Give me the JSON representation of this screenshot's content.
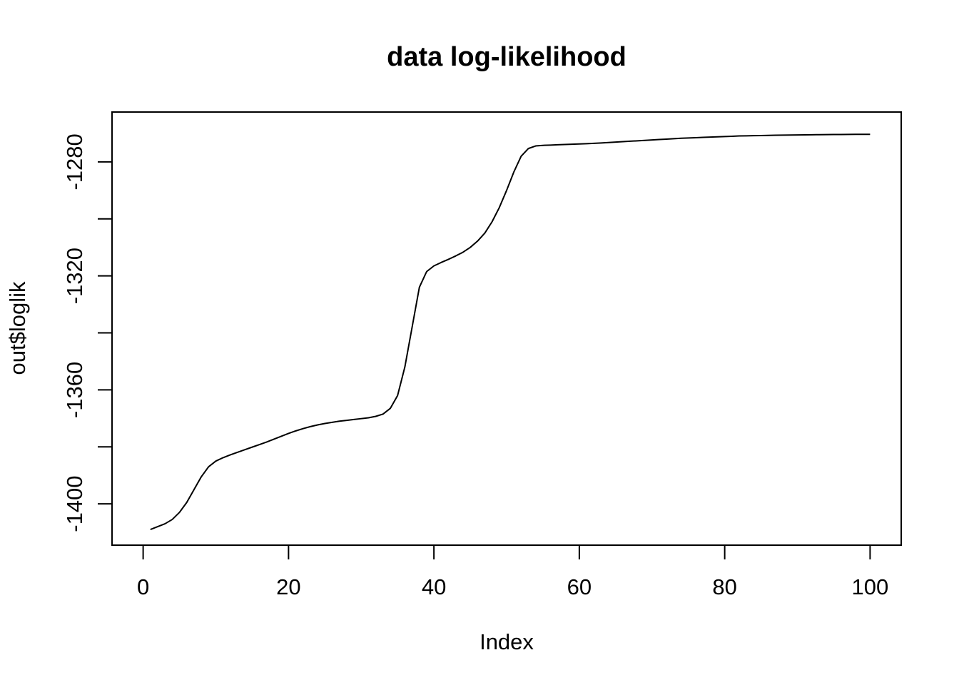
{
  "chart_data": {
    "type": "line",
    "title": "data log-likelihood",
    "xlabel": "Index",
    "ylabel": "out$loglik",
    "xlim": [
      -4.28,
      104.28
    ],
    "ylim": [
      -1414.5,
      -1262.5
    ],
    "x_ticks": [
      0,
      20,
      40,
      60,
      80,
      100
    ],
    "y_ticks": [
      -1400,
      -1380,
      -1360,
      -1340,
      -1320,
      -1300,
      -1280
    ],
    "y_tick_labels": [
      "-1400",
      "",
      "-1360",
      "",
      "-1320",
      "",
      "-1280"
    ],
    "grid": false,
    "series": [
      {
        "x": [
          1,
          2,
          3,
          4,
          5,
          6,
          7,
          8,
          9,
          10,
          11,
          12,
          13,
          14,
          15,
          16,
          17,
          18,
          19,
          20,
          21,
          22,
          23,
          24,
          25,
          26,
          27,
          28,
          29,
          30,
          31,
          32,
          33,
          34,
          35,
          36,
          37,
          38,
          39,
          40,
          41,
          42,
          43,
          44,
          45,
          46,
          47,
          48,
          49,
          50,
          51,
          52,
          53,
          54,
          55,
          56,
          57,
          58,
          59,
          60,
          61,
          62,
          63,
          64,
          65,
          66,
          67,
          68,
          69,
          70,
          71,
          72,
          73,
          74,
          75,
          76,
          77,
          78,
          79,
          80,
          81,
          82,
          83,
          84,
          85,
          86,
          87,
          88,
          89,
          90,
          91,
          92,
          93,
          94,
          95,
          96,
          97,
          98,
          99,
          100
        ],
        "y": [
          -1409,
          -1408,
          -1407,
          -1405.5,
          -1403,
          -1399.5,
          -1395,
          -1390.5,
          -1387,
          -1385,
          -1383.8,
          -1382.8,
          -1381.9,
          -1381,
          -1380.1,
          -1379.2,
          -1378.3,
          -1377.3,
          -1376.3,
          -1375.3,
          -1374.4,
          -1373.6,
          -1372.9,
          -1372.3,
          -1371.8,
          -1371.4,
          -1371,
          -1370.7,
          -1370.4,
          -1370.1,
          -1369.8,
          -1369.3,
          -1368.5,
          -1366.5,
          -1362,
          -1352,
          -1338,
          -1324,
          -1318.5,
          -1316.5,
          -1315.3,
          -1314.2,
          -1313,
          -1311.7,
          -1310,
          -1307.8,
          -1305,
          -1301,
          -1296,
          -1290,
          -1283.5,
          -1278,
          -1275.3,
          -1274.4,
          -1274.2,
          -1274.1,
          -1274,
          -1273.9,
          -1273.8,
          -1273.7,
          -1273.6,
          -1273.5,
          -1273.35,
          -1273.2,
          -1273.05,
          -1272.9,
          -1272.75,
          -1272.6,
          -1272.45,
          -1272.3,
          -1272.15,
          -1272,
          -1271.85,
          -1271.7,
          -1271.6,
          -1271.5,
          -1271.4,
          -1271.3,
          -1271.2,
          -1271.1,
          -1271,
          -1270.9,
          -1270.85,
          -1270.8,
          -1270.75,
          -1270.7,
          -1270.65,
          -1270.6,
          -1270.57,
          -1270.54,
          -1270.5,
          -1270.47,
          -1270.44,
          -1270.42,
          -1270.4,
          -1270.38,
          -1270.36,
          -1270.34,
          -1270.33,
          -1270.32
        ]
      }
    ]
  }
}
